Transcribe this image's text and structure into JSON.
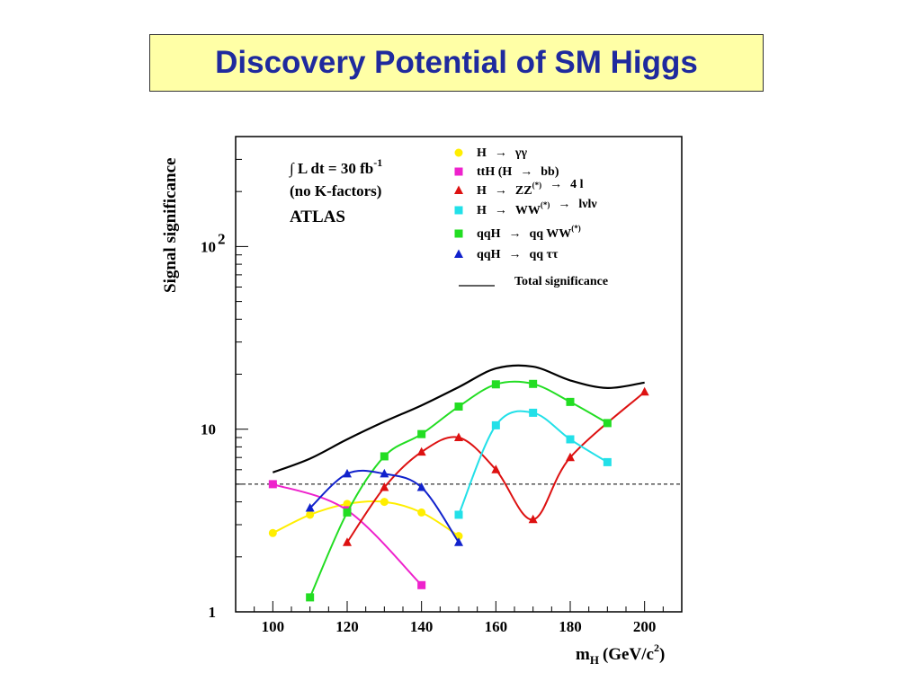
{
  "slide": {
    "title": "Discovery Potential of SM Higgs"
  },
  "chart_data": {
    "type": "line",
    "title": "",
    "xlabel_main": "m",
    "xlabel_sub": "H",
    "xlabel_unit": "(GeV/c",
    "xlabel_sup": "2",
    "xlabel_close": ")",
    "ylabel": "Signal significance",
    "xlim": [
      90,
      210
    ],
    "ylim": [
      1,
      400
    ],
    "yscale": "log",
    "x_ticks": [
      100,
      120,
      140,
      160,
      180,
      200
    ],
    "y_ticks": [
      {
        "value": 1,
        "label": "1",
        "sup": ""
      },
      {
        "value": 10,
        "label": "10",
        "sup": ""
      },
      {
        "value": 100,
        "label": "10",
        "sup": "2"
      }
    ],
    "reference_line": {
      "value": 5,
      "style": "dashed"
    },
    "annotations": {
      "lumi_prefix": "∫ L dt = 30 fb",
      "lumi_sup": "-1",
      "kfactor": "(no K-factors)",
      "experiment": "ATLAS"
    },
    "series": [
      {
        "name": "H → γγ",
        "label_parts": [
          "H",
          "→",
          "γγ"
        ],
        "sup": "",
        "color": "#ffee00",
        "marker": "circle",
        "x": [
          100,
          110,
          120,
          130,
          140,
          150
        ],
        "y": [
          2.7,
          3.4,
          3.9,
          4.0,
          3.5,
          2.6
        ]
      },
      {
        "name": "ttH (H → bb)",
        "label_parts": [
          "ttH (H",
          "→",
          "bb)"
        ],
        "sup": "",
        "color": "#ee22cc",
        "marker": "square",
        "x": [
          100,
          120,
          140
        ],
        "y": [
          5.0,
          3.6,
          1.4
        ]
      },
      {
        "name": "H → ZZ(*) → 4 l",
        "label_parts": [
          "H",
          "→",
          "ZZ"
        ],
        "sup": "(*)",
        "label_tail": [
          "→",
          "4 l"
        ],
        "color": "#dd1111",
        "marker": "triangle",
        "x": [
          120,
          130,
          140,
          150,
          160,
          170,
          180,
          200
        ],
        "y": [
          2.4,
          4.8,
          7.5,
          9.0,
          6.0,
          3.2,
          7.0,
          16.0
        ]
      },
      {
        "name": "H → WW(*) → lνlν",
        "label_parts": [
          "H",
          "→",
          "WW"
        ],
        "sup": "(*)",
        "label_tail": [
          "→",
          "lνlν"
        ],
        "color": "#22e0e8",
        "marker": "square",
        "x": [
          150,
          160,
          170,
          180,
          190
        ],
        "y": [
          3.4,
          10.5,
          12.3,
          8.8,
          6.6
        ]
      },
      {
        "name": "qqH → qq WW(*)",
        "label_parts": [
          "qqH",
          "→",
          "qq WW"
        ],
        "sup": "(*)",
        "color": "#22dd22",
        "marker": "square",
        "x": [
          110,
          120,
          130,
          140,
          150,
          160,
          170,
          180,
          190
        ],
        "y": [
          1.2,
          3.5,
          7.1,
          9.4,
          13.3,
          17.6,
          17.7,
          14.1,
          10.8
        ]
      },
      {
        "name": "qqH → qq ττ",
        "label_parts": [
          "qqH",
          "→",
          "qq ττ"
        ],
        "sup": "",
        "color": "#1122cc",
        "marker": "triangle",
        "x": [
          110,
          120,
          130,
          140,
          150
        ],
        "y": [
          3.7,
          5.7,
          5.7,
          4.8,
          2.4
        ]
      },
      {
        "name": "Total significance",
        "label_parts": [
          "Total significance"
        ],
        "sup": "",
        "color": "#000000",
        "marker": "none",
        "x": [
          100,
          110,
          120,
          130,
          140,
          150,
          160,
          170,
          180,
          190,
          200
        ],
        "y": [
          5.8,
          6.9,
          8.8,
          11.0,
          13.5,
          17.0,
          21.5,
          22.0,
          18.5,
          16.8,
          18.0
        ]
      }
    ]
  }
}
